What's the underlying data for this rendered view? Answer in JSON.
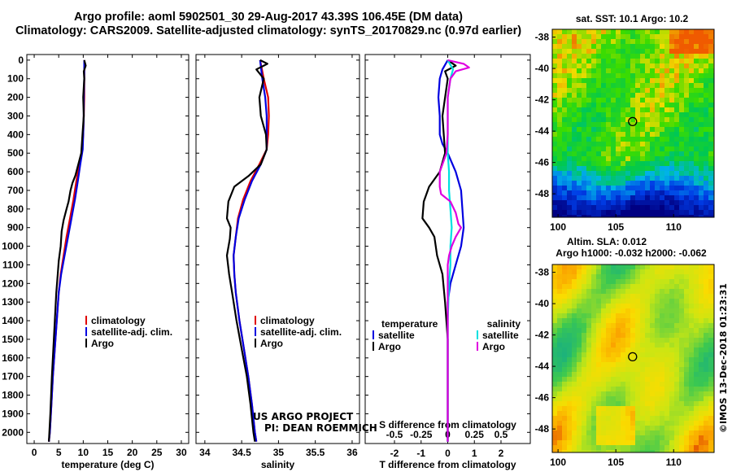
{
  "title_line1": "Argo profile: aoml 5902501_30 29-Aug-2017 43.39S 106.45E (DM data)",
  "title_line2": "Climatology: CARS2009. Satellite-adjusted climatology: synTS_20170829.nc (0.97d earlier)",
  "colors": {
    "climatology": "#e00000",
    "satellite": "#0000e0",
    "argo": "#000000",
    "sat_salinity": "#00e0e0",
    "argo_salinity": "#e000e0"
  },
  "depth_axis": {
    "ticks": [
      0,
      100,
      200,
      300,
      400,
      500,
      600,
      700,
      800,
      900,
      1000,
      1100,
      1200,
      1300,
      1400,
      1500,
      1600,
      1700,
      1800,
      1900,
      2000
    ],
    "ylim": [
      2060,
      -30
    ]
  },
  "chart_data": [
    {
      "type": "line",
      "xlabel": "temperature (deg C)",
      "xlim": [
        -1.5,
        31.5
      ],
      "xticks": [
        0,
        5,
        10,
        15,
        20,
        25,
        30
      ],
      "legend": [
        "climatology",
        "satellite-adj. clim.",
        "Argo"
      ],
      "series": [
        {
          "name": "climatology",
          "color": "#e00000",
          "points": [
            [
              10.2,
              0
            ],
            [
              10.2,
              100
            ],
            [
              10.2,
              200
            ],
            [
              10.1,
              300
            ],
            [
              10.0,
              400
            ],
            [
              9.8,
              480
            ],
            [
              9.2,
              560
            ],
            [
              8.6,
              650
            ],
            [
              8.0,
              750
            ],
            [
              7.3,
              850
            ],
            [
              6.6,
              950
            ],
            [
              6.0,
              1050
            ],
            [
              5.4,
              1150
            ],
            [
              5.0,
              1250
            ],
            [
              4.6,
              1400
            ],
            [
              4.2,
              1550
            ],
            [
              3.8,
              1700
            ],
            [
              3.5,
              1850
            ],
            [
              3.2,
              2000
            ],
            [
              3.0,
              2050
            ]
          ]
        },
        {
          "name": "satellite-adj. clim.",
          "color": "#0000e0",
          "points": [
            [
              10.2,
              0
            ],
            [
              10.2,
              100
            ],
            [
              10.1,
              200
            ],
            [
              10.1,
              300
            ],
            [
              10.0,
              400
            ],
            [
              9.9,
              480
            ],
            [
              9.4,
              560
            ],
            [
              8.9,
              650
            ],
            [
              8.3,
              750
            ],
            [
              7.6,
              850
            ],
            [
              6.9,
              950
            ],
            [
              6.2,
              1050
            ],
            [
              5.5,
              1150
            ],
            [
              5.0,
              1250
            ],
            [
              4.6,
              1400
            ],
            [
              4.2,
              1550
            ],
            [
              3.8,
              1700
            ],
            [
              3.5,
              1850
            ],
            [
              3.2,
              2000
            ],
            [
              3.0,
              2050
            ]
          ]
        },
        {
          "name": "Argo",
          "color": "#000000",
          "points": [
            [
              10.2,
              0
            ],
            [
              10.5,
              30
            ],
            [
              10.1,
              60
            ],
            [
              10.2,
              100
            ],
            [
              10.0,
              200
            ],
            [
              10.1,
              300
            ],
            [
              9.8,
              420
            ],
            [
              9.6,
              500
            ],
            [
              9.0,
              560
            ],
            [
              8.4,
              620
            ],
            [
              7.8,
              660
            ],
            [
              7.4,
              700
            ],
            [
              7.0,
              760
            ],
            [
              6.6,
              800
            ],
            [
              6.0,
              860
            ],
            [
              5.6,
              920
            ],
            [
              5.4,
              1000
            ],
            [
              5.0,
              1080
            ],
            [
              4.8,
              1150
            ],
            [
              4.5,
              1250
            ],
            [
              4.3,
              1350
            ],
            [
              4.0,
              1500
            ],
            [
              3.6,
              1700
            ],
            [
              3.3,
              1900
            ],
            [
              3.0,
              2050
            ]
          ]
        }
      ]
    },
    {
      "type": "line",
      "xlabel": "salinity",
      "xlim": [
        33.88,
        36.1
      ],
      "xticks": [
        34,
        34.5,
        35,
        35.5,
        36
      ],
      "legend": [
        "climatology",
        "satellite-adj. clim.",
        "Argo"
      ],
      "series": [
        {
          "name": "climatology",
          "color": "#e00000",
          "points": [
            [
              34.75,
              0
            ],
            [
              34.8,
              100
            ],
            [
              34.86,
              200
            ],
            [
              34.87,
              300
            ],
            [
              34.86,
              400
            ],
            [
              34.84,
              480
            ],
            [
              34.74,
              560
            ],
            [
              34.62,
              650
            ],
            [
              34.52,
              750
            ],
            [
              34.45,
              850
            ],
            [
              34.42,
              950
            ],
            [
              34.39,
              1050
            ],
            [
              34.4,
              1150
            ],
            [
              34.42,
              1250
            ],
            [
              34.47,
              1400
            ],
            [
              34.53,
              1550
            ],
            [
              34.59,
              1700
            ],
            [
              34.64,
              1850
            ],
            [
              34.68,
              2000
            ],
            [
              34.7,
              2050
            ]
          ]
        },
        {
          "name": "satellite-adj. clim.",
          "color": "#0000e0",
          "points": [
            [
              34.75,
              0
            ],
            [
              34.78,
              100
            ],
            [
              34.82,
              200
            ],
            [
              34.84,
              300
            ],
            [
              34.84,
              400
            ],
            [
              34.84,
              480
            ],
            [
              34.76,
              560
            ],
            [
              34.64,
              650
            ],
            [
              34.54,
              750
            ],
            [
              34.46,
              850
            ],
            [
              34.42,
              950
            ],
            [
              34.39,
              1050
            ],
            [
              34.4,
              1150
            ],
            [
              34.42,
              1250
            ],
            [
              34.47,
              1400
            ],
            [
              34.53,
              1550
            ],
            [
              34.59,
              1700
            ],
            [
              34.64,
              1850
            ],
            [
              34.68,
              2000
            ],
            [
              34.7,
              2050
            ]
          ]
        },
        {
          "name": "Argo",
          "color": "#000000",
          "points": [
            [
              34.75,
              0
            ],
            [
              34.85,
              20
            ],
            [
              34.7,
              50
            ],
            [
              34.8,
              100
            ],
            [
              34.74,
              200
            ],
            [
              34.76,
              300
            ],
            [
              34.83,
              400
            ],
            [
              34.84,
              480
            ],
            [
              34.76,
              560
            ],
            [
              34.6,
              620
            ],
            [
              34.4,
              680
            ],
            [
              34.32,
              760
            ],
            [
              34.3,
              850
            ],
            [
              34.35,
              900
            ],
            [
              34.34,
              960
            ],
            [
              34.3,
              1050
            ],
            [
              34.33,
              1150
            ],
            [
              34.37,
              1250
            ],
            [
              34.43,
              1400
            ],
            [
              34.5,
              1550
            ],
            [
              34.57,
              1700
            ],
            [
              34.62,
              1850
            ],
            [
              34.66,
              2000
            ],
            [
              34.68,
              2050
            ]
          ]
        }
      ]
    },
    {
      "type": "line",
      "xlabel": "T difference from climatology",
      "xlabel2": "S difference from climatology",
      "xlim": [
        -3.1,
        3.1
      ],
      "xticks": [
        -2,
        -1,
        0,
        1,
        2
      ],
      "xticks2_labels": [
        "-0.5",
        "-0.25",
        "0",
        "0.25",
        "0.5"
      ],
      "xticks2_pos": [
        -2,
        -1,
        0,
        1,
        2
      ],
      "legend_title_left": "temperature",
      "legend_title_right": "salinity",
      "legend": [
        "satellite",
        "Argo",
        "satellite",
        "Argo"
      ],
      "series": [
        {
          "name": "satellite",
          "color": "#0000e0",
          "points": [
            [
              0,
              0
            ],
            [
              -0.2,
              50
            ],
            [
              -0.3,
              100
            ],
            [
              -0.35,
              200
            ],
            [
              -0.3,
              300
            ],
            [
              -0.3,
              400
            ],
            [
              -0.2,
              450
            ],
            [
              0,
              500
            ],
            [
              0.3,
              600
            ],
            [
              0.5,
              700
            ],
            [
              0.55,
              800
            ],
            [
              0.6,
              900
            ],
            [
              0.5,
              1000
            ],
            [
              0.3,
              1100
            ],
            [
              0.1,
              1200
            ],
            [
              0,
              1300
            ],
            [
              0,
              1500
            ],
            [
              0,
              2050
            ]
          ]
        },
        {
          "name": "Argo",
          "color": "#000000",
          "points": [
            [
              0,
              0
            ],
            [
              0.3,
              30
            ],
            [
              -0.1,
              60
            ],
            [
              0,
              100
            ],
            [
              -0.2,
              300
            ],
            [
              -0.15,
              400
            ],
            [
              -0.1,
              500
            ],
            [
              -0.3,
              600
            ],
            [
              -0.7,
              680
            ],
            [
              -0.9,
              760
            ],
            [
              -0.95,
              850
            ],
            [
              -0.7,
              900
            ],
            [
              -0.5,
              950
            ],
            [
              -0.4,
              1050
            ],
            [
              -0.2,
              1150
            ],
            [
              -0.1,
              1300
            ],
            [
              0,
              1500
            ],
            [
              0,
              2050
            ]
          ]
        },
        {
          "name": "satellite",
          "color": "#00e0e0",
          "points": [
            [
              0,
              0
            ],
            [
              0.2,
              50
            ],
            [
              0.1,
              100
            ],
            [
              0,
              200
            ],
            [
              0,
              400
            ],
            [
              0,
              500
            ],
            [
              0.05,
              600
            ],
            [
              0.05,
              700
            ],
            [
              0.1,
              800
            ],
            [
              0.15,
              900
            ],
            [
              0.1,
              1000
            ],
            [
              0.1,
              1100
            ],
            [
              0.05,
              1200
            ],
            [
              0,
              1400
            ],
            [
              0,
              2050
            ]
          ]
        },
        {
          "name": "Argo",
          "color": "#e000e0",
          "points": [
            [
              0,
              0
            ],
            [
              0.6,
              20
            ],
            [
              0.8,
              40
            ],
            [
              0.3,
              60
            ],
            [
              0.1,
              100
            ],
            [
              0,
              200
            ],
            [
              0,
              400
            ],
            [
              -0.05,
              500
            ],
            [
              -0.3,
              600
            ],
            [
              -0.3,
              680
            ],
            [
              -0.25,
              720
            ],
            [
              0.1,
              760
            ],
            [
              0.3,
              820
            ],
            [
              0.4,
              880
            ],
            [
              0.5,
              900
            ],
            [
              0.3,
              950
            ],
            [
              0.15,
              1000
            ],
            [
              0.05,
              1050
            ],
            [
              0,
              1100
            ],
            [
              0,
              2050
            ]
          ]
        }
      ]
    },
    {
      "type": "heatmap",
      "title": "sat. SST: 10.1 Argo: 10.2",
      "xticks": [
        100,
        105,
        110
      ],
      "yticks": [
        -38,
        -40,
        -42,
        -44,
        -46,
        -48
      ],
      "xlim": [
        99.5,
        113.5
      ],
      "ylim": [
        -49.5,
        -37.5
      ],
      "marker": [
        106.45,
        -43.39
      ]
    },
    {
      "type": "heatmap",
      "title": "Altim. SLA: 0.012",
      "subtitle": "Argo h1000: -0.032 h2000: -0.062",
      "xticks": [
        100,
        105,
        110
      ],
      "yticks": [
        -38,
        -40,
        -42,
        -44,
        -46,
        -48
      ],
      "xlim": [
        99.5,
        113.5
      ],
      "ylim": [
        -49.5,
        -37.5
      ],
      "marker": [
        106.45,
        -43.39
      ]
    }
  ],
  "project_credit_line1": "US ARGO PROJECT",
  "project_credit_line2": "PI: DEAN ROEMMICH",
  "imos_credit": "©IMOS 13-Dec-2018 01:23:31"
}
